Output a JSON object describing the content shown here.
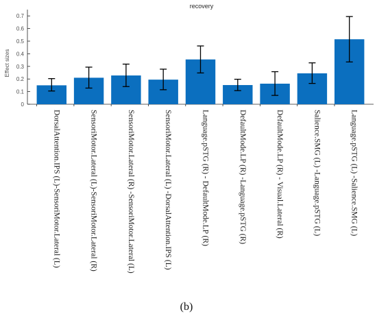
{
  "chart_data": {
    "type": "bar",
    "title": "recovery",
    "xlabel": "",
    "ylabel": "Effect sizes",
    "ylim": [
      0,
      0.75
    ],
    "yticks": [
      "0",
      "0.1",
      "0.2",
      "0.3",
      "0.4",
      "0.5",
      "0.6",
      "0.7"
    ],
    "categories": [
      "DorsalAttention.IPS (L)-SensoriMotor.Lateral (L)",
      "SensoriMotor.Lateral (L)-SensoriMotor.Lateral (R)",
      "SensoriMotor.Lateral (R) -SensoriMotor.Lateral (L)",
      "SensoriMotor.Lateral (L) -DorsalAttention.IPS (L)",
      "Language.pSTG (R) - DefaultMode.LP (R)",
      "DefaultMode.LP (R) -Language.pSTG (R)",
      "DefaultMode.LP (R) - Visual.Lateral (R)",
      "Salience.SMG (L) -Language.pSTG (L)",
      "Language.pSTG (L) -Salience.SMG (L)"
    ],
    "values": [
      0.15,
      0.21,
      0.228,
      0.195,
      0.355,
      0.152,
      0.163,
      0.245,
      0.515
    ],
    "error_low": [
      0.105,
      0.128,
      0.14,
      0.115,
      0.248,
      0.108,
      0.07,
      0.165,
      0.335
    ],
    "error_high": [
      0.203,
      0.294,
      0.318,
      0.278,
      0.462,
      0.198,
      0.258,
      0.328,
      0.695
    ],
    "grid": false,
    "bar_color": "#0b6fbf",
    "error_color": "#000000"
  },
  "caption": "(b)"
}
